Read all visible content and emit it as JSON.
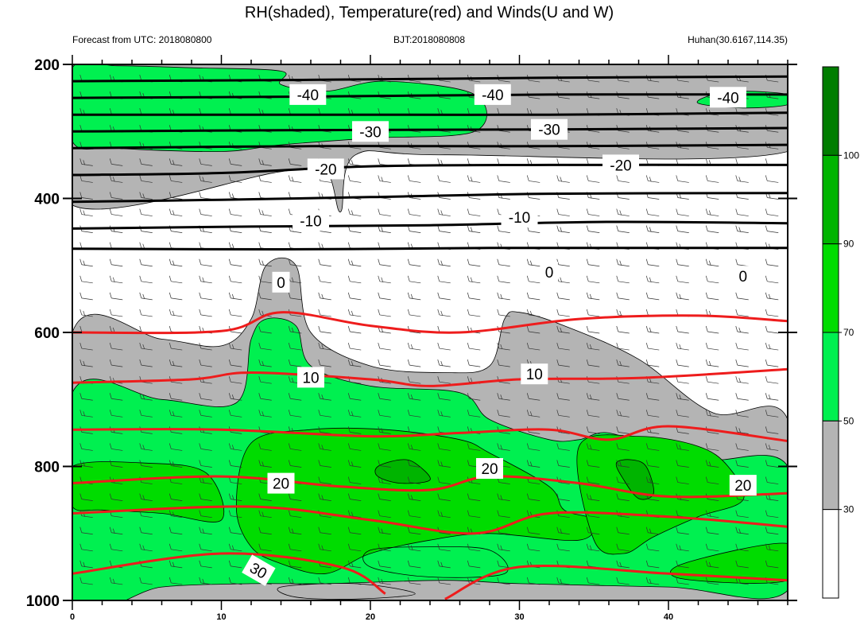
{
  "chart_data": {
    "type": "heatmap",
    "title": "RH(shaded), Temperature(red) and Winds(U and W)",
    "subtitle_left": "Forecast from UTC: 2018080800",
    "subtitle_center": "BJT:2018080808",
    "subtitle_right": "Huhan(30.6167,114.35)",
    "xlim": [
      0,
      48
    ],
    "ylim": [
      1000,
      200
    ],
    "x_ticks": [
      "0",
      "10",
      "20",
      "30",
      "40"
    ],
    "y_ticks": [
      "200",
      "400",
      "600",
      "800",
      "1000"
    ],
    "colorbar": {
      "levels": [
        30,
        50,
        70,
        90,
        100
      ],
      "level_labels": [
        "30",
        "50",
        "70",
        "90",
        "100"
      ],
      "colors": [
        "#ffffff",
        "#b4b4b4",
        "#00f050",
        "#00dc00",
        "#00b400",
        "#007d00"
      ]
    },
    "rh_bands": [
      {
        "level": 30,
        "color": "#b4b4b4",
        "polys": [
          [
            [
              0,
              200
            ],
            [
              48,
              200
            ],
            [
              48,
              330
            ],
            [
              25,
              335
            ],
            [
              19,
              335
            ],
            [
              18,
              420
            ],
            [
              17,
              360
            ],
            [
              14,
              360
            ],
            [
              0,
              410
            ]
          ],
          [
            [
              0,
              600
            ],
            [
              6,
              610
            ],
            [
              10,
              620
            ],
            [
              12,
              580
            ],
            [
              13,
              500
            ],
            [
              15,
              500
            ],
            [
              16,
              600
            ],
            [
              20,
              650
            ],
            [
              25,
              660
            ],
            [
              28,
              650
            ],
            [
              29,
              580
            ],
            [
              30,
              570
            ],
            [
              33,
              590
            ],
            [
              38,
              640
            ],
            [
              43,
              720
            ],
            [
              48,
              730
            ],
            [
              48,
              1000
            ],
            [
              0,
              1000
            ]
          ],
          [
            [
              14,
              980
            ],
            [
              19,
              975
            ],
            [
              23,
              990
            ],
            [
              19,
              998
            ],
            [
              15,
              995
            ]
          ]
        ]
      },
      {
        "level": 50,
        "color": "#00f050",
        "polys": [
          [
            [
              0,
              205
            ],
            [
              3,
              202
            ],
            [
              8,
              205
            ],
            [
              14,
              210
            ],
            [
              14,
              230
            ],
            [
              17,
              240
            ],
            [
              21,
              225
            ],
            [
              27,
              245
            ],
            [
              27,
              300
            ],
            [
              20,
              310
            ],
            [
              14,
              320
            ],
            [
              10,
              330
            ],
            [
              3,
              325
            ],
            [
              0,
              315
            ]
          ],
          [
            [
              43,
              245
            ],
            [
              45,
              240
            ],
            [
              48,
              245
            ],
            [
              48,
              260
            ],
            [
              45,
              265
            ],
            [
              42,
              258
            ]
          ],
          [
            [
              0,
              690
            ],
            [
              6,
              700
            ],
            [
              11,
              705
            ],
            [
              12,
              610
            ],
            [
              13,
              580
            ],
            [
              15,
              590
            ],
            [
              16,
              650
            ],
            [
              20,
              680
            ],
            [
              26,
              690
            ],
            [
              28,
              730
            ],
            [
              32,
              760
            ],
            [
              34,
              760
            ],
            [
              36,
              750
            ],
            [
              40,
              780
            ],
            [
              43,
              790
            ],
            [
              48,
              800
            ],
            [
              48,
              985
            ],
            [
              40,
              980
            ],
            [
              30,
              975
            ],
            [
              25,
              970
            ],
            [
              17,
              975
            ],
            [
              12,
              975
            ],
            [
              6,
              980
            ],
            [
              0,
              1000
            ]
          ]
        ]
      },
      {
        "level": 70,
        "color": "#00dc00",
        "polys": [
          [
            [
              0,
              800
            ],
            [
              5,
              795
            ],
            [
              9,
              810
            ],
            [
              10,
              880
            ],
            [
              6,
              870
            ],
            [
              2,
              865
            ],
            [
              0,
              860
            ]
          ],
          [
            [
              11,
              860
            ],
            [
              12,
              765
            ],
            [
              16,
              745
            ],
            [
              21,
              745
            ],
            [
              26,
              760
            ],
            [
              28,
              780
            ],
            [
              32,
              830
            ],
            [
              33,
              865
            ],
            [
              35,
              880
            ],
            [
              34,
              910
            ],
            [
              28,
              900
            ],
            [
              24,
              910
            ],
            [
              20,
              930
            ],
            [
              17,
              960
            ],
            [
              14,
              945
            ],
            [
              12,
              920
            ]
          ],
          [
            [
              34,
              770
            ],
            [
              38,
              755
            ],
            [
              42,
              770
            ],
            [
              44,
              800
            ],
            [
              45,
              850
            ],
            [
              42,
              875
            ],
            [
              39,
              905
            ],
            [
              37,
              930
            ],
            [
              35,
              910
            ]
          ],
          [
            [
              41,
              945
            ],
            [
              48,
              915
            ],
            [
              48,
              970
            ],
            [
              41,
              968
            ]
          ]
        ]
      },
      {
        "level": 90,
        "color": "#00b400",
        "polys": [
          [
            [
              20.5,
              800
            ],
            [
              22,
              790
            ],
            [
              23,
              795
            ],
            [
              24,
              820
            ],
            [
              22,
              825
            ],
            [
              20.5,
              815
            ]
          ],
          [
            [
              36.5,
              795
            ],
            [
              37.5,
              790
            ],
            [
              38.5,
              800
            ],
            [
              39,
              840
            ],
            [
              38,
              848
            ],
            [
              37,
              820
            ]
          ]
        ]
      }
    ],
    "rh_outlines": [
      [
        [
          20,
          925
        ],
        [
          24,
          920
        ],
        [
          28,
          925
        ],
        [
          29,
          960
        ],
        [
          24,
          965
        ],
        [
          20,
          950
        ]
      ]
    ],
    "isotherms": {
      "black": [
        [
          [
            0,
            225
          ],
          [
            16,
            223
          ],
          [
            32,
            220
          ],
          [
            48,
            218
          ]
        ],
        [
          [
            0,
            250
          ],
          [
            16,
            248
          ],
          [
            32,
            245
          ],
          [
            48,
            245
          ]
        ],
        [
          [
            0,
            275
          ],
          [
            16,
            275
          ],
          [
            32,
            275
          ],
          [
            48,
            272
          ]
        ],
        [
          [
            0,
            300
          ],
          [
            16,
            298
          ],
          [
            32,
            297
          ],
          [
            48,
            295
          ]
        ],
        [
          [
            0,
            325
          ],
          [
            16,
            322
          ],
          [
            32,
            322
          ],
          [
            48,
            320
          ]
        ],
        [
          [
            0,
            365
          ],
          [
            10,
            362
          ],
          [
            20,
            352
          ],
          [
            32,
            350
          ],
          [
            48,
            350
          ]
        ],
        [
          [
            0,
            405
          ],
          [
            10,
            402
          ],
          [
            20,
            398
          ],
          [
            32,
            393
          ],
          [
            48,
            392
          ]
        ],
        [
          [
            0,
            445
          ],
          [
            12,
            442
          ],
          [
            24,
            440
          ],
          [
            36,
            435
          ],
          [
            48,
            437
          ]
        ],
        [
          [
            0,
            475
          ],
          [
            14,
            476
          ],
          [
            28,
            474
          ],
          [
            40,
            474
          ],
          [
            48,
            474
          ]
        ]
      ],
      "red": [
        [
          [
            0,
            600
          ],
          [
            10,
            598
          ],
          [
            14,
            570
          ],
          [
            20,
            590
          ],
          [
            26,
            600
          ],
          [
            34,
            580
          ],
          [
            42,
            575
          ],
          [
            48,
            583
          ]
        ],
        [
          [
            0,
            675
          ],
          [
            8,
            670
          ],
          [
            12,
            660
          ],
          [
            20,
            670
          ],
          [
            24,
            680
          ],
          [
            30,
            670
          ],
          [
            38,
            668
          ],
          [
            48,
            655
          ]
        ],
        [
          [
            0,
            745
          ],
          [
            10,
            745
          ],
          [
            20,
            755
          ],
          [
            26,
            750
          ],
          [
            32,
            745
          ],
          [
            36,
            760
          ],
          [
            40,
            740
          ],
          [
            48,
            762
          ]
        ],
        [
          [
            0,
            825
          ],
          [
            10,
            815
          ],
          [
            18,
            830
          ],
          [
            24,
            835
          ],
          [
            28,
            815
          ],
          [
            34,
            825
          ],
          [
            40,
            845
          ],
          [
            48,
            840
          ]
        ],
        [
          [
            0,
            870
          ],
          [
            12,
            860
          ],
          [
            20,
            880
          ],
          [
            27,
            900
          ],
          [
            32,
            870
          ],
          [
            40,
            875
          ],
          [
            48,
            890
          ]
        ],
        [
          [
            0,
            960
          ],
          [
            10,
            930
          ],
          [
            18,
            950
          ],
          [
            21,
            990
          ]
        ],
        [
          [
            25,
            998
          ],
          [
            30,
            950
          ],
          [
            40,
            960
          ],
          [
            48,
            970
          ]
        ]
      ]
    },
    "contour_labels": [
      {
        "text": "-40",
        "x": 15.8,
        "y": 245
      },
      {
        "text": "-40",
        "x": 28.2,
        "y": 245
      },
      {
        "text": "-40",
        "x": 44.0,
        "y": 249
      },
      {
        "text": "-30",
        "x": 20.0,
        "y": 300
      },
      {
        "text": "-30",
        "x": 32.0,
        "y": 297
      },
      {
        "text": "-20",
        "x": 17.0,
        "y": 356
      },
      {
        "text": "-20",
        "x": 36.8,
        "y": 350
      },
      {
        "text": "-10",
        "x": 16.0,
        "y": 433
      },
      {
        "text": "-10",
        "x": 30.0,
        "y": 428
      },
      {
        "text": "0",
        "x": 14.0,
        "y": 525
      },
      {
        "text": "0",
        "x": 32.0,
        "y": 510
      },
      {
        "text": "0",
        "x": 45.0,
        "y": 516
      },
      {
        "text": "10",
        "x": 16.0,
        "y": 667
      },
      {
        "text": "10",
        "x": 31.0,
        "y": 662
      },
      {
        "text": "20",
        "x": 14.0,
        "y": 825
      },
      {
        "text": "20",
        "x": 28.0,
        "y": 803
      },
      {
        "text": "20",
        "x": 45.0,
        "y": 828
      },
      {
        "text": "30",
        "x": 12.5,
        "y": 955,
        "rotate": 30
      }
    ],
    "wind_levels": [
      225,
      250,
      275,
      300,
      325,
      350,
      375,
      400,
      425,
      450,
      475,
      500,
      525,
      550,
      575,
      600,
      625,
      650,
      675,
      700,
      725,
      750,
      775,
      800,
      825,
      850,
      875,
      900,
      925,
      950,
      975
    ]
  }
}
